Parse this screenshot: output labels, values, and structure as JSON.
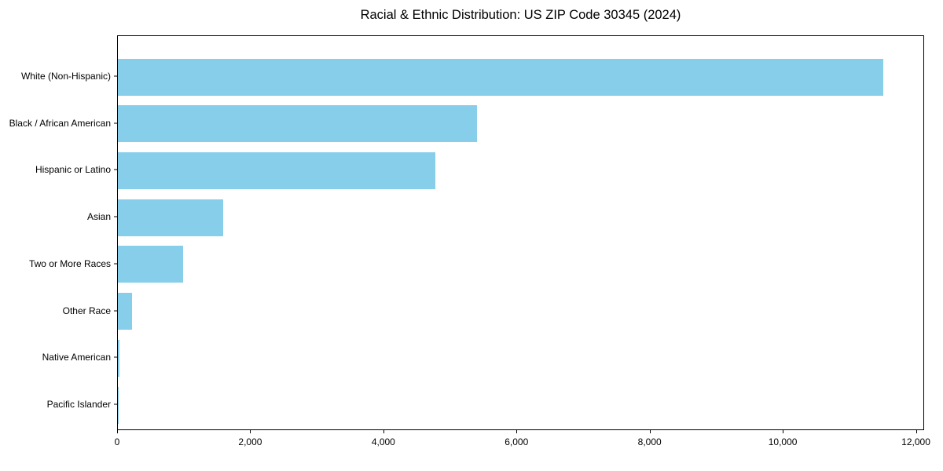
{
  "chart_data": {
    "type": "bar",
    "orientation": "horizontal",
    "title": "Racial & Ethnic Distribution: US ZIP Code 30345 (2024)",
    "categories": [
      "White (Non-Hispanic)",
      "Black / African American",
      "Hispanic or Latino",
      "Asian",
      "Two or More Races",
      "Other Race",
      "Native American",
      "Pacific Islander"
    ],
    "values": [
      11500,
      5400,
      4770,
      1580,
      975,
      210,
      25,
      10
    ],
    "xlabel": "",
    "ylabel": "",
    "xlim": [
      0,
      12100
    ],
    "x_ticks": [
      0,
      2000,
      4000,
      6000,
      8000,
      10000,
      12000
    ],
    "x_tick_labels": [
      "0",
      "2,000",
      "4,000",
      "6,000",
      "8,000",
      "10,000",
      "12,000"
    ],
    "bar_color": "#87CEEB",
    "background_color": "#ffffff",
    "axis_color": "#000000",
    "grid": false,
    "legend": null
  }
}
